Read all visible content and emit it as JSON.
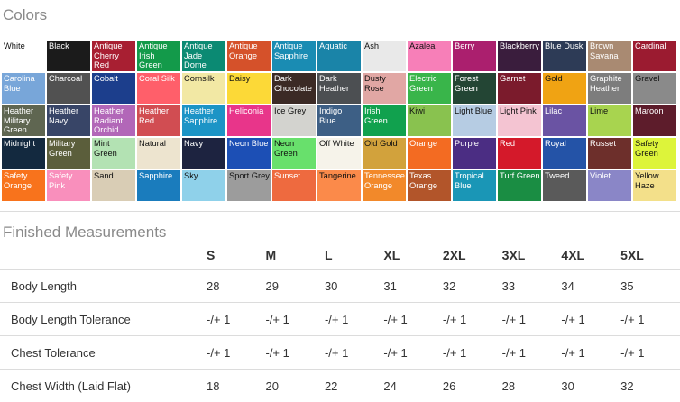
{
  "colors": {
    "title": "Colors",
    "swatches": [
      {
        "name": "White",
        "color": "#ffffff",
        "text": "light"
      },
      {
        "name": "Black",
        "color": "#1b1b1b",
        "text": "dark"
      },
      {
        "name": "Antique Cherry Red",
        "color": "#a81f32",
        "text": "dark"
      },
      {
        "name": "Antique Irish Green",
        "color": "#139a4a",
        "text": "dark"
      },
      {
        "name": "Antique Jade Dome",
        "color": "#0b8a73",
        "text": "dark"
      },
      {
        "name": "Antique Orange",
        "color": "#d5512a",
        "text": "dark"
      },
      {
        "name": "Antique Sapphire",
        "color": "#1a8cb3",
        "text": "dark"
      },
      {
        "name": "Aquatic",
        "color": "#1a84a8",
        "text": "dark"
      },
      {
        "name": "Ash",
        "color": "#e9e9e9",
        "text": "light"
      },
      {
        "name": "Azalea",
        "color": "#f77fb8",
        "text": "light"
      },
      {
        "name": "Berry",
        "color": "#ab1f6e",
        "text": "dark"
      },
      {
        "name": "Blackberry",
        "color": "#3a1d3d",
        "text": "dark"
      },
      {
        "name": "Blue Dusk",
        "color": "#2d3b56",
        "text": "dark"
      },
      {
        "name": "Brown Savana",
        "color": "#a98a72",
        "text": "dark"
      },
      {
        "name": "Cardinal",
        "color": "#9b1b30",
        "text": "dark"
      },
      {
        "name": "Carolina Blue",
        "color": "#78a6d9",
        "text": "dark"
      },
      {
        "name": "Charcoal",
        "color": "#515151",
        "text": "dark"
      },
      {
        "name": "Cobalt",
        "color": "#1c3e8c",
        "text": "dark"
      },
      {
        "name": "Coral Silk",
        "color": "#ff5f6a",
        "text": "dark"
      },
      {
        "name": "Cornsilk",
        "color": "#f2e8a4",
        "text": "light"
      },
      {
        "name": "Daisy",
        "color": "#fcd937",
        "text": "light"
      },
      {
        "name": "Dark Chocolate",
        "color": "#3b2a25",
        "text": "dark"
      },
      {
        "name": "Dark Heather",
        "color": "#4c4f52",
        "text": "dark"
      },
      {
        "name": "Dusty Rose",
        "color": "#e1a7a4",
        "text": "light"
      },
      {
        "name": "Electric Green",
        "color": "#39b54a",
        "text": "dark"
      },
      {
        "name": "Forest Green",
        "color": "#234534",
        "text": "dark"
      },
      {
        "name": "Garnet",
        "color": "#7b1b2c",
        "text": "dark"
      },
      {
        "name": "Gold",
        "color": "#f0a313",
        "text": "light"
      },
      {
        "name": "Graphite Heather",
        "color": "#7d7d7d",
        "text": "dark"
      },
      {
        "name": "Gravel",
        "color": "#8a8a8a",
        "text": "light"
      },
      {
        "name": "Heather Military Green",
        "color": "#5f6651",
        "text": "dark"
      },
      {
        "name": "Heather Navy",
        "color": "#384567",
        "text": "dark"
      },
      {
        "name": "Heather Radiant Orchid",
        "color": "#b267b8",
        "text": "dark"
      },
      {
        "name": "Heather Red",
        "color": "#d14d52",
        "text": "dark"
      },
      {
        "name": "Heather Sapphire",
        "color": "#1c94c6",
        "text": "dark"
      },
      {
        "name": "Heliconia",
        "color": "#e8358a",
        "text": "dark"
      },
      {
        "name": "Ice Grey",
        "color": "#d3d3cf",
        "text": "light"
      },
      {
        "name": "Indigo Blue",
        "color": "#3d5f85",
        "text": "dark"
      },
      {
        "name": "Irish Green",
        "color": "#11a14e",
        "text": "dark"
      },
      {
        "name": "Kiwi",
        "color": "#89c24f",
        "text": "light"
      },
      {
        "name": "Light Blue",
        "color": "#b6cce3",
        "text": "light"
      },
      {
        "name": "Light Pink",
        "color": "#f4c4d2",
        "text": "light"
      },
      {
        "name": "Lilac",
        "color": "#6a53a3",
        "text": "dark"
      },
      {
        "name": "Lime",
        "color": "#a8d44f",
        "text": "light"
      },
      {
        "name": "Maroon",
        "color": "#5d1c2b",
        "text": "dark"
      },
      {
        "name": "Midnight",
        "color": "#13293f",
        "text": "dark"
      },
      {
        "name": "Military Green",
        "color": "#5b5e3b",
        "text": "dark"
      },
      {
        "name": "Mint Green",
        "color": "#b3e2b3",
        "text": "light"
      },
      {
        "name": "Natural",
        "color": "#ede4cf",
        "text": "light"
      },
      {
        "name": "Navy",
        "color": "#1d2340",
        "text": "dark"
      },
      {
        "name": "Neon Blue",
        "color": "#1c4fb5",
        "text": "dark"
      },
      {
        "name": "Neon Green",
        "color": "#68e06c",
        "text": "light"
      },
      {
        "name": "Off White",
        "color": "#f6f3ea",
        "text": "light"
      },
      {
        "name": "Old Gold",
        "color": "#d2a23c",
        "text": "light"
      },
      {
        "name": "Orange",
        "color": "#f36b22",
        "text": "dark"
      },
      {
        "name": "Purple",
        "color": "#4b2d83",
        "text": "dark"
      },
      {
        "name": "Red",
        "color": "#d4192a",
        "text": "dark"
      },
      {
        "name": "Royal",
        "color": "#2453a7",
        "text": "dark"
      },
      {
        "name": "Russet",
        "color": "#6d2f2b",
        "text": "dark"
      },
      {
        "name": "Safety Green",
        "color": "#ddf43a",
        "text": "light"
      },
      {
        "name": "Safety Orange",
        "color": "#f8731c",
        "text": "dark"
      },
      {
        "name": "Safety Pink",
        "color": "#f98fbc",
        "text": "dark"
      },
      {
        "name": "Sand",
        "color": "#d9cdb5",
        "text": "light"
      },
      {
        "name": "Sapphire",
        "color": "#1a7cbd",
        "text": "dark"
      },
      {
        "name": "Sky",
        "color": "#8fd1ea",
        "text": "light"
      },
      {
        "name": "Sport Grey",
        "color": "#9c9c9c",
        "text": "light"
      },
      {
        "name": "Sunset",
        "color": "#ee6a3f",
        "text": "dark"
      },
      {
        "name": "Tangerine",
        "color": "#fb8a4a",
        "text": "light"
      },
      {
        "name": "Tennessee Orange",
        "color": "#f2892a",
        "text": "dark"
      },
      {
        "name": "Texas Orange",
        "color": "#b2552a",
        "text": "dark"
      },
      {
        "name": "Tropical Blue",
        "color": "#1a96b6",
        "text": "dark"
      },
      {
        "name": "Turf Green",
        "color": "#1a8d43",
        "text": "dark"
      },
      {
        "name": "Tweed",
        "color": "#5a5a5a",
        "text": "dark"
      },
      {
        "name": "Violet",
        "color": "#8a86c7",
        "text": "dark"
      },
      {
        "name": "Yellow Haze",
        "color": "#f3e08a",
        "text": "light"
      }
    ]
  },
  "measurements": {
    "title": "Finished Measurements",
    "sizes": [
      "S",
      "M",
      "L",
      "XL",
      "2XL",
      "3XL",
      "4XL",
      "5XL"
    ],
    "rows": [
      {
        "label": "Body Length",
        "values": [
          "28",
          "29",
          "30",
          "31",
          "32",
          "33",
          "34",
          "35"
        ]
      },
      {
        "label": "Body Length Tolerance",
        "values": [
          "-/+ 1",
          "-/+ 1",
          "-/+ 1",
          "-/+ 1",
          "-/+ 1",
          "-/+ 1",
          "-/+ 1",
          "-/+ 1"
        ]
      },
      {
        "label": "Chest Tolerance",
        "values": [
          "-/+ 1",
          "-/+ 1",
          "-/+ 1",
          "-/+ 1",
          "-/+ 1",
          "-/+ 1",
          "-/+ 1",
          "-/+ 1"
        ]
      },
      {
        "label": "Chest Width (Laid Flat)",
        "values": [
          "18",
          "20",
          "22",
          "24",
          "26",
          "28",
          "30",
          "32"
        ]
      }
    ]
  }
}
